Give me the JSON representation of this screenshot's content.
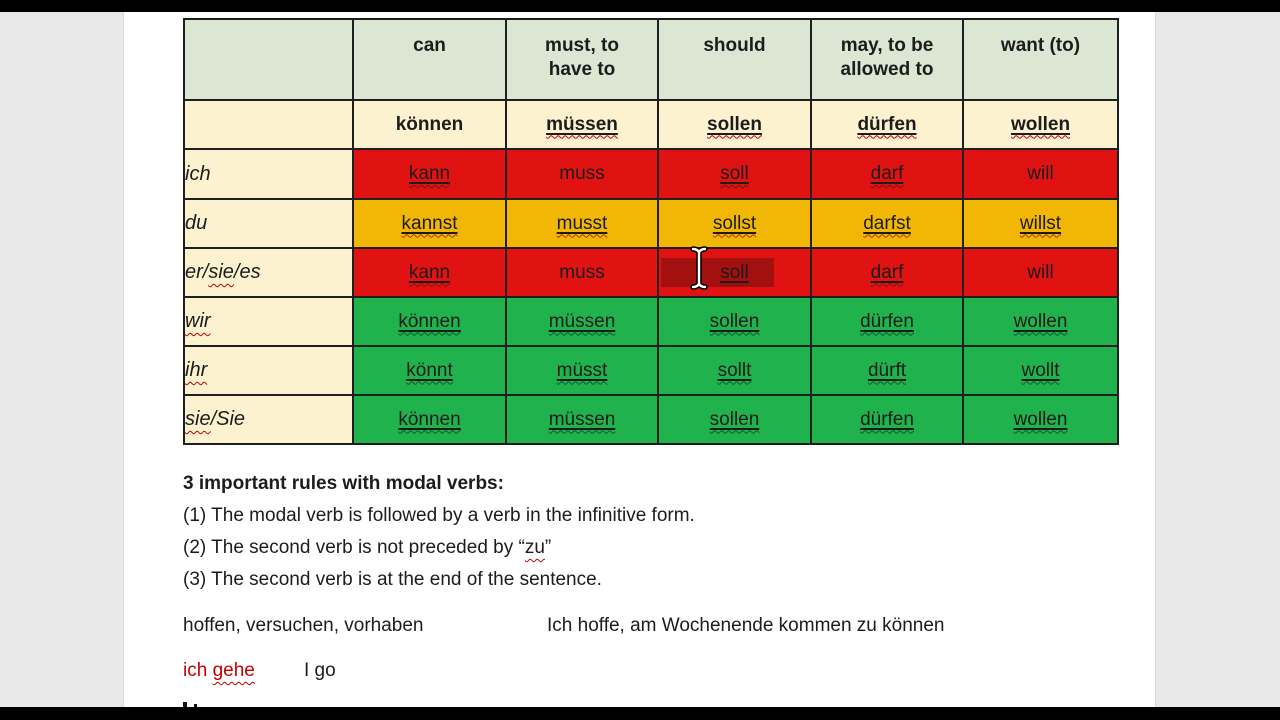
{
  "window": {
    "kind": "document-page-in-video-frame",
    "page_bg": "#ffffff",
    "margin_bg": "#e9e9e9",
    "letterbox_color": "#000000"
  },
  "colors": {
    "header_bg": "#dbe7d2",
    "cream_bg": "#fdf2cf",
    "red_bg": "#e11212",
    "amber_bg": "#f2b705",
    "green_bg": "#1fb24d",
    "selection_bg": "#a31010",
    "border": "#1f1f1f",
    "text": "#1c1c1c",
    "red_text": "#c00000",
    "squiggle": {
      "cream": "#c00000",
      "red": "#7e150c",
      "amber": "#a63c00",
      "green": "#0a5c2c",
      "white": "#cc0000"
    }
  },
  "table": {
    "headers": [
      "",
      "can",
      "must, to\nhave to",
      "should",
      "may, to be\nallowed to",
      "want (to)"
    ],
    "infinitives": [
      {
        "text": "können",
        "underline": false,
        "squiggle": false
      },
      {
        "text": "müssen",
        "underline": true,
        "squiggle": true
      },
      {
        "text": "sollen",
        "underline": true,
        "squiggle": true
      },
      {
        "text": "dürfen",
        "underline": true,
        "squiggle": true
      },
      {
        "text": "wollen",
        "underline": true,
        "squiggle": true
      }
    ],
    "rows": [
      {
        "pronoun": [
          {
            "text": "ich",
            "squiggle": false
          }
        ],
        "color": "red",
        "cells": [
          {
            "text": "kann",
            "underline": true,
            "squiggle": true
          },
          {
            "text": "muss",
            "underline": false,
            "squiggle": false
          },
          {
            "text": "soll",
            "underline": true,
            "squiggle": true
          },
          {
            "text": "darf",
            "underline": true,
            "squiggle": true
          },
          {
            "text": "will",
            "underline": false,
            "squiggle": false
          }
        ]
      },
      {
        "pronoun": [
          {
            "text": "du",
            "squiggle": false
          }
        ],
        "color": "amber",
        "cells": [
          {
            "text": "kannst",
            "underline": true,
            "squiggle": true
          },
          {
            "text": "musst",
            "underline": true,
            "squiggle": true
          },
          {
            "text": "sollst",
            "underline": true,
            "squiggle": true
          },
          {
            "text": "darfst",
            "underline": true,
            "squiggle": true
          },
          {
            "text": "willst",
            "underline": true,
            "squiggle": true
          }
        ]
      },
      {
        "pronoun": [
          {
            "text": "er/",
            "squiggle": false
          },
          {
            "text": "sie",
            "squiggle": true
          },
          {
            "text": "/es",
            "squiggle": false
          }
        ],
        "color": "red",
        "cells": [
          {
            "text": "kann",
            "underline": true,
            "squiggle": true
          },
          {
            "text": "muss",
            "underline": false,
            "squiggle": false
          },
          {
            "text": "soll",
            "underline": true,
            "squiggle": true,
            "selected": true
          },
          {
            "text": "darf",
            "underline": true,
            "squiggle": true
          },
          {
            "text": "will",
            "underline": false,
            "squiggle": false
          }
        ]
      },
      {
        "pronoun": [
          {
            "text": "wir",
            "squiggle": true
          }
        ],
        "color": "green",
        "cells": [
          {
            "text": "können",
            "underline": true,
            "squiggle": true
          },
          {
            "text": "müssen",
            "underline": true,
            "squiggle": true
          },
          {
            "text": "sollen",
            "underline": true,
            "squiggle": true
          },
          {
            "text": "dürfen",
            "underline": true,
            "squiggle": true
          },
          {
            "text": "wollen",
            "underline": true,
            "squiggle": true
          }
        ]
      },
      {
        "pronoun": [
          {
            "text": "ihr",
            "squiggle": true
          }
        ],
        "color": "green",
        "cells": [
          {
            "text": "könnt",
            "underline": true,
            "squiggle": true
          },
          {
            "text": "müsst",
            "underline": true,
            "squiggle": true
          },
          {
            "text": "sollt",
            "underline": true,
            "squiggle": true
          },
          {
            "text": "dürft",
            "underline": true,
            "squiggle": true
          },
          {
            "text": "wollt",
            "underline": true,
            "squiggle": true
          }
        ]
      },
      {
        "pronoun": [
          {
            "text": "sie",
            "squiggle": true
          },
          {
            "text": "/Sie",
            "squiggle": false
          }
        ],
        "color": "green",
        "cells": [
          {
            "text": "können",
            "underline": true,
            "squiggle": true
          },
          {
            "text": "müssen",
            "underline": true,
            "squiggle": true
          },
          {
            "text": "sollen",
            "underline": true,
            "squiggle": true
          },
          {
            "text": "dürfen",
            "underline": true,
            "squiggle": true
          },
          {
            "text": "wollen",
            "underline": true,
            "squiggle": true
          }
        ]
      }
    ]
  },
  "rules": {
    "title": "3 important rules with modal verbs:",
    "rule1": "(1) The modal verb is followed by a verb in the infinitive form.",
    "rule2_pre": "(2) The second verb is not preceded by “",
    "rule2_word": "zu",
    "rule2_post": "”",
    "rule3": "(3) The second verb is at the end of the sentence."
  },
  "examples": {
    "verbs_list": "hoffen, versuchen, vorhaben",
    "sentence": "Ich hoffe, am Wochenende kommen zu können",
    "german_pre": "ich ",
    "german_word": "gehe",
    "english": "I go"
  },
  "cursor": {
    "type": "text-ibeam"
  }
}
